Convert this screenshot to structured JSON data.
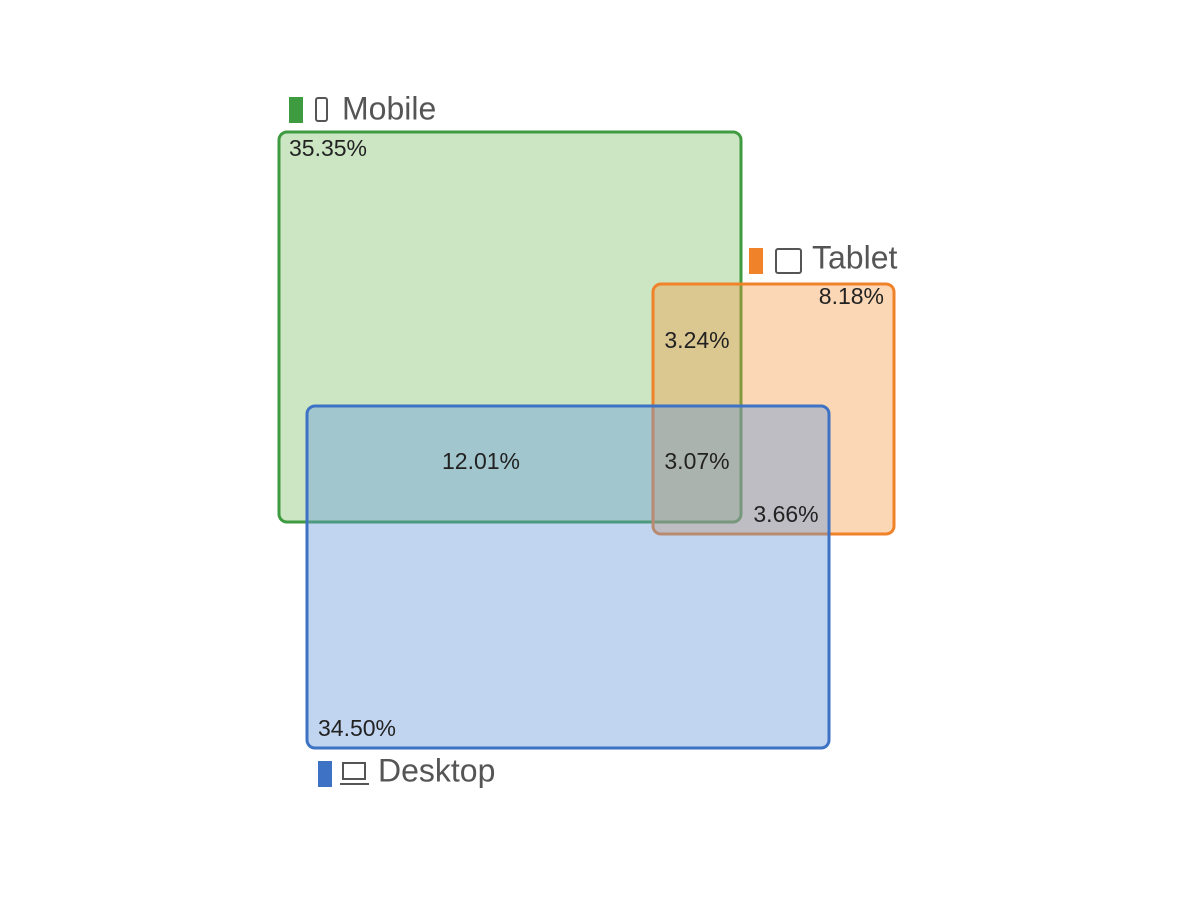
{
  "sets": [
    {
      "name": "Mobile"
    },
    {
      "name": "Tablet"
    },
    {
      "name": "Desktop"
    }
  ],
  "regions": {
    "mobile_only": "35.35%",
    "tablet_only": "8.18%",
    "desktop_only": "34.50%",
    "mobile_tablet": "3.24%",
    "mobile_desktop": "12.01%",
    "all_three": "3.07%",
    "tablet_desktop": "3.66%"
  }
}
